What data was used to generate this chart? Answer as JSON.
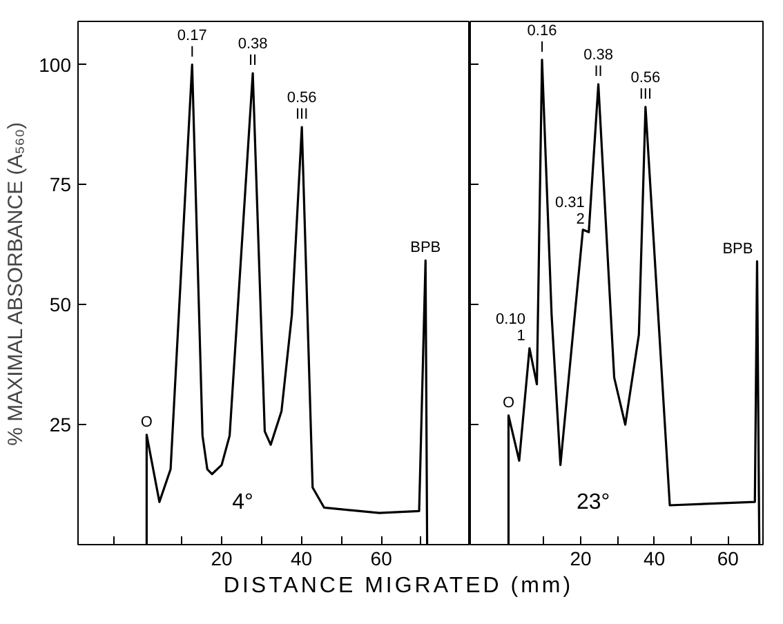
{
  "chart_data": [
    {
      "type": "line",
      "ylabel": "% MAXIMAL ABSORBANCE (A₅₆₀)",
      "xlabel": "DISTANCE MIGRATED (mm)",
      "xlim": [
        -16,
        82.3
      ],
      "ylim": [
        0,
        109
      ],
      "xticks": [
        {
          "value": -7,
          "label": null
        },
        {
          "value": 10,
          "label": null
        },
        20,
        {
          "value": 30,
          "label": null
        },
        40,
        {
          "value": 50,
          "label": null
        },
        60,
        {
          "value": 70,
          "label": null
        }
      ],
      "yticks": [
        25,
        50,
        75,
        100
      ],
      "grid": false,
      "series": [
        {
          "color": "#000000",
          "x": [
            1.2,
            1.2,
            4.4,
            7.2,
            12.6,
            15.2,
            16.4,
            17.6,
            20,
            22,
            27.8,
            30.8,
            32.3,
            35,
            37.6,
            40.1,
            42.8,
            45.7,
            59.5,
            69.5,
            71.1,
            71.5
          ],
          "values": [
            0,
            22.9,
            8.9,
            15.7,
            100,
            22.7,
            15.7,
            14.7,
            16.6,
            22.7,
            98.2,
            23.6,
            20.8,
            27.8,
            47.9,
            87,
            11.9,
            7.7,
            6.6,
            7.0,
            59.2,
            0
          ]
        }
      ],
      "annotations": [
        {
          "text": "O",
          "x": 1.2,
          "y": 22.9
        },
        {
          "text": "0.17\nI",
          "x": 12.6,
          "y": 100
        },
        {
          "text": "0.38\nII",
          "x": 27.8,
          "y": 98.2
        },
        {
          "text": "0.56\nIII",
          "x": 40.1,
          "y": 87
        },
        {
          "text": "BPB",
          "x": 71.1,
          "y": 59.2
        },
        "4°"
      ]
    },
    {
      "type": "line",
      "tick_labels": "x",
      "xlim": [
        -10,
        69.5
      ],
      "ylim": [
        0,
        109
      ],
      "xticks": [
        {
          "value": 10,
          "label": null
        },
        20,
        {
          "value": 30,
          "label": null
        },
        40,
        {
          "value": 50,
          "label": null
        },
        60
      ],
      "yticks": [
        25,
        50,
        75,
        100
      ],
      "grid": false,
      "series": [
        {
          "color": "#000000",
          "x": [
            0.4,
            0.4,
            3.3,
            6.1,
            8.1,
            9.5,
            12.1,
            14.5,
            20.6,
            22.2,
            24.8,
            29.1,
            32.1,
            35.8,
            37.6,
            44.2,
            67.3,
            67.9,
            68.5
          ],
          "values": [
            0,
            26.9,
            17.5,
            40.9,
            33.4,
            101,
            47.9,
            16.6,
            65.6,
            65.1,
            95.9,
            34.8,
            25,
            43.7,
            91.2,
            8.2,
            8.9,
            59,
            0
          ]
        }
      ],
      "annotations": [
        {
          "text": "O",
          "x": 0.4,
          "y": 26.9
        },
        {
          "text": "0.10\n1",
          "x": 6.1,
          "y": 40.9
        },
        {
          "text": "0.16\nI",
          "x": 9.5,
          "y": 101
        },
        {
          "text": "0.31\n2",
          "x": 22.2,
          "y": 65.1
        },
        {
          "text": "0.38\nII",
          "x": 24.8,
          "y": 95.9
        },
        {
          "text": "0.56\nIII",
          "x": 37.6,
          "y": 91.2
        },
        {
          "text": "BPB",
          "x": 67.9,
          "y": 59
        },
        "23°"
      ]
    }
  ]
}
